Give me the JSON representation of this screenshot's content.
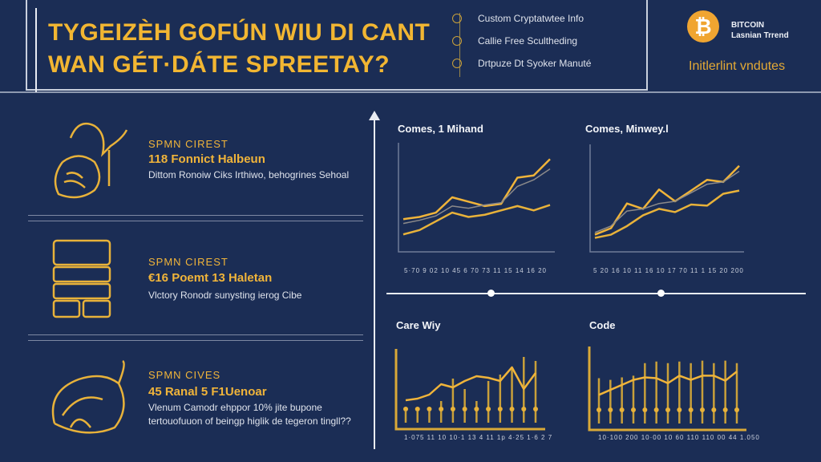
{
  "header": {
    "title_line1": "TYGEIZÈH GOFÚN WIU DI CANT",
    "title_line2": "WAN GÉT·DÁTE SPREETAY?",
    "list": [
      "Custom Cryptatwtee Info",
      "Callie Free Scultheding",
      "Drtpuze Dt Syoker Manuté"
    ],
    "logo_line1": "BITCOIN",
    "logo_line2": "Lasnian Trrend",
    "logo_symbol": "₿",
    "subtitle": "Initlerlint vndutes"
  },
  "items": [
    {
      "icon": "hand-icon",
      "heading": "SPMN CIREST",
      "subheading": "118 Fonnict Halbeun",
      "description": "Dittom Ronoiw Ciks Irthiwo, behogrines Sehoal"
    },
    {
      "icon": "boxes-icon",
      "heading": "SPMN CIREST",
      "subheading": "€16 Poemt 13 Haletan",
      "description": "Vlctory Ronodr sunysting ierog Cibe"
    },
    {
      "icon": "fish-icon",
      "heading": "SPMN CIVES",
      "subheading": "45 Ranal 5 F1Uenoar",
      "description": "Vlenum Camodr ehppor 10% jite bupone tertouofuuon of beingp higlik de tegeron tingll??"
    }
  ],
  "colors": {
    "background": "#1b2d55",
    "accent": "#f0b43a",
    "line": "#e9ecf3",
    "bitcoin": "#f0a531"
  },
  "chart_data": [
    {
      "type": "line",
      "title": "Comes, 1 Mihand",
      "ticks": "5·70 9 02 10 45 6 70 73 11 15 14 16 20",
      "series": [
        {
          "values": [
            3.0,
            3.2,
            3.6,
            5.0,
            4.6,
            4.2,
            4.4,
            6.8,
            7.0,
            8.5
          ]
        },
        {
          "values": [
            1.6,
            2.0,
            2.8,
            3.6,
            3.2,
            3.4,
            3.8,
            4.2,
            3.8,
            4.3
          ]
        },
        {
          "values": [
            2.6,
            2.9,
            3.3,
            4.2,
            4.0,
            4.3,
            4.5,
            6.0,
            6.6,
            7.6
          ]
        }
      ]
    },
    {
      "type": "line",
      "title": "Comes, Minwey.l",
      "ticks": "5 20 16 10 11 16 10 17 70 11 1 15 20 200",
      "series": [
        {
          "values": [
            1.6,
            2.2,
            4.5,
            4.0,
            5.8,
            4.7,
            5.7,
            6.7,
            6.5,
            8.0
          ]
        },
        {
          "values": [
            1.3,
            1.6,
            2.4,
            3.4,
            4.0,
            3.7,
            4.4,
            4.3,
            5.4,
            5.7
          ]
        },
        {
          "values": [
            1.8,
            2.4,
            3.8,
            4.0,
            4.5,
            4.7,
            5.5,
            6.3,
            6.5,
            7.5
          ]
        }
      ]
    },
    {
      "type": "bar",
      "title": "Care Wiy",
      "ticks": "1·075 11 10 10·1 13 4 11 1p 4·25 1·6 2 7",
      "line": [
        3.6,
        3.8,
        4.3,
        5.6,
        5.2,
        6.0,
        6.6,
        6.4,
        6.0,
        7.7,
        5.0,
        7.0
      ],
      "bars": [
        2.2,
        2.2,
        2.2,
        3.5,
        6.3,
        5.0,
        3.5,
        6.0,
        6.8,
        7.5,
        9.0,
        8.5
      ]
    },
    {
      "type": "bar",
      "title": "Code",
      "ticks": "10·100 200 10·00 10 60 110 110 00 44 1.050",
      "line": [
        4.2,
        4.8,
        5.4,
        6.0,
        6.3,
        6.2,
        5.6,
        6.5,
        6.0,
        6.5,
        6.5,
        5.9,
        7.0
      ],
      "bars": [
        6.2,
        6.0,
        6.3,
        6.5,
        8.0,
        8.2,
        8.0,
        8.2,
        8.0,
        8.3,
        8.0,
        8.3,
        8.0
      ]
    }
  ]
}
